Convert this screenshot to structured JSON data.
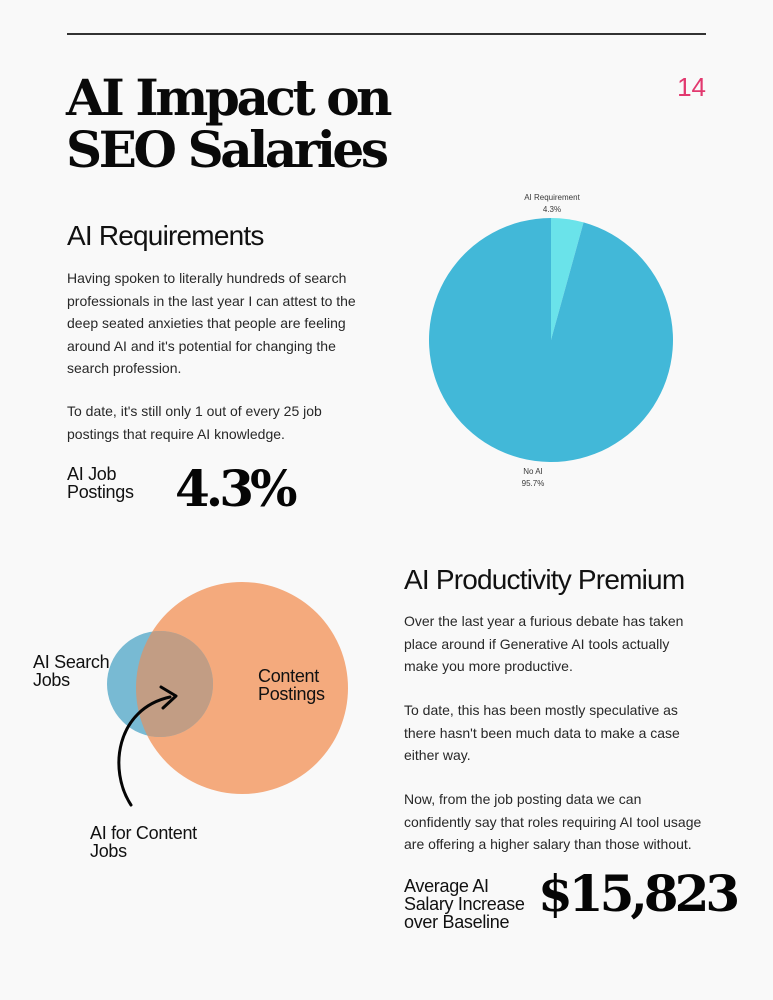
{
  "page": {
    "number": "14",
    "title_line_1": "AI Impact on",
    "title_line_2": "SEO Salaries"
  },
  "requirements": {
    "title": "AI Requirements",
    "paragraph_1": "Having spoken to literally hundreds of search professionals in the last year I can attest to the deep seated anxieties that people are feeling around AI and it's potential for changing the search profession.",
    "paragraph_2": "To date, it's still only 1 out of every 25 job postings that require AI knowledge.",
    "stat_label_line_1": "AI Job",
    "stat_label_line_2": "Postings",
    "stat_value": "4.3%"
  },
  "chart_data": {
    "type": "pie",
    "slices": [
      {
        "label": "AI Requirement",
        "value": 4.3,
        "value_label": "4.3%",
        "color": "#6ae3ea"
      },
      {
        "label": "No AI",
        "value": 95.7,
        "value_label": "95.7%",
        "color": "#42b8d8"
      }
    ]
  },
  "venn": {
    "left_label_line_1": "AI Search",
    "left_label_line_2": "Jobs",
    "right_label_line_1": "Content",
    "right_label_line_2": "Postings",
    "overlap_label_line_1": "AI for Content",
    "overlap_label_line_2": "Jobs",
    "colors": {
      "search": "#75b9d2",
      "content": "#f4aa7d",
      "overlap": "#c69b7f",
      "arrow": "#050505"
    }
  },
  "productivity": {
    "title": "AI Productivity Premium",
    "paragraph_1": "Over the last year a furious debate has taken place around if Generative AI tools actually make you more productive.",
    "paragraph_2": "To date, this has been mostly speculative as there hasn't been much data to make a case either way.",
    "paragraph_3": "Now, from the job posting data we can confidently say that roles requiring AI tool usage are offering a higher salary than those without.",
    "stat_label_line_1": "Average AI",
    "stat_label_line_2": "Salary Increase",
    "stat_label_line_3": "over Baseline",
    "stat_value": "$15,823"
  }
}
